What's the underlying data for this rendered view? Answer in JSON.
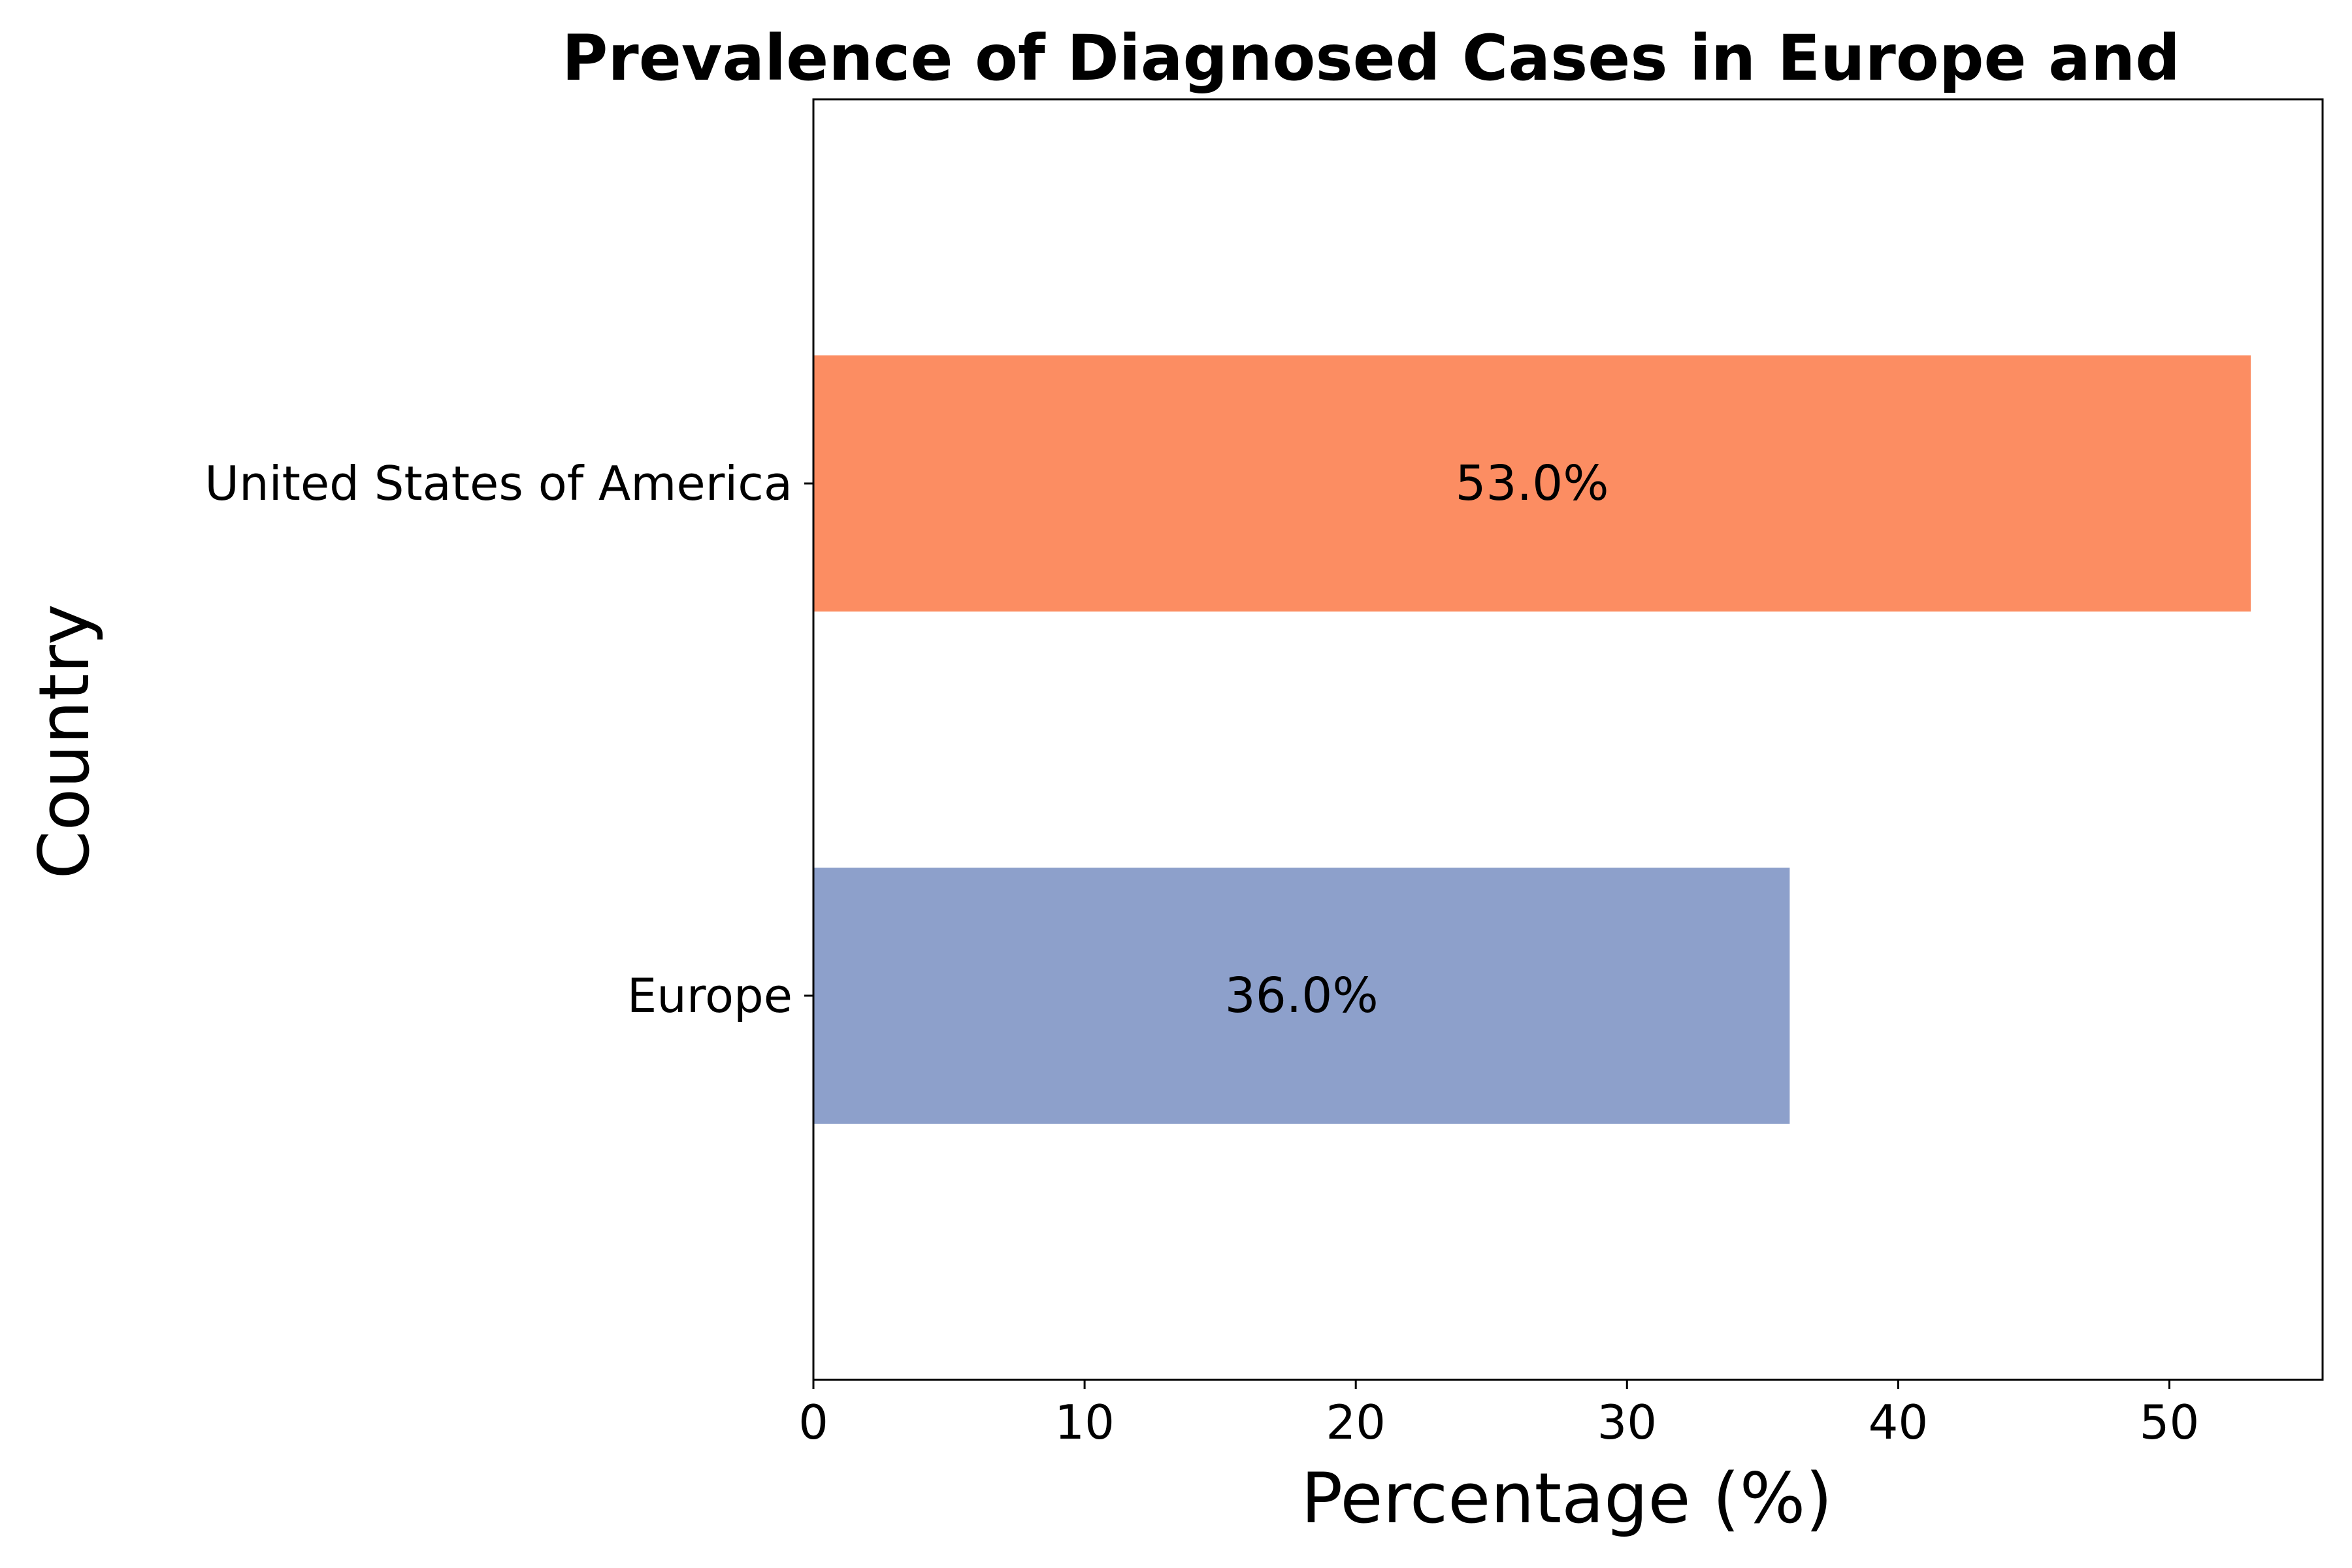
{
  "chart_data": {
    "type": "bar",
    "orientation": "horizontal",
    "title": "Prevalence of Diagnosed Cases in Europe and",
    "xlabel": "Percentage (%)",
    "ylabel": "Country",
    "categories": [
      "Europe",
      "United States of America"
    ],
    "values": [
      36.0,
      53.0
    ],
    "data_labels": [
      "36.0%",
      "53.0%"
    ],
    "colors": [
      "#8da0cb",
      "#fc8d62"
    ],
    "xlim": [
      0,
      55.65
    ],
    "xticks": [
      0,
      10,
      20,
      30,
      40,
      50
    ],
    "xtick_labels": [
      "0",
      "10",
      "20",
      "30",
      "40",
      "50"
    ],
    "grid": false,
    "legend": "none"
  }
}
